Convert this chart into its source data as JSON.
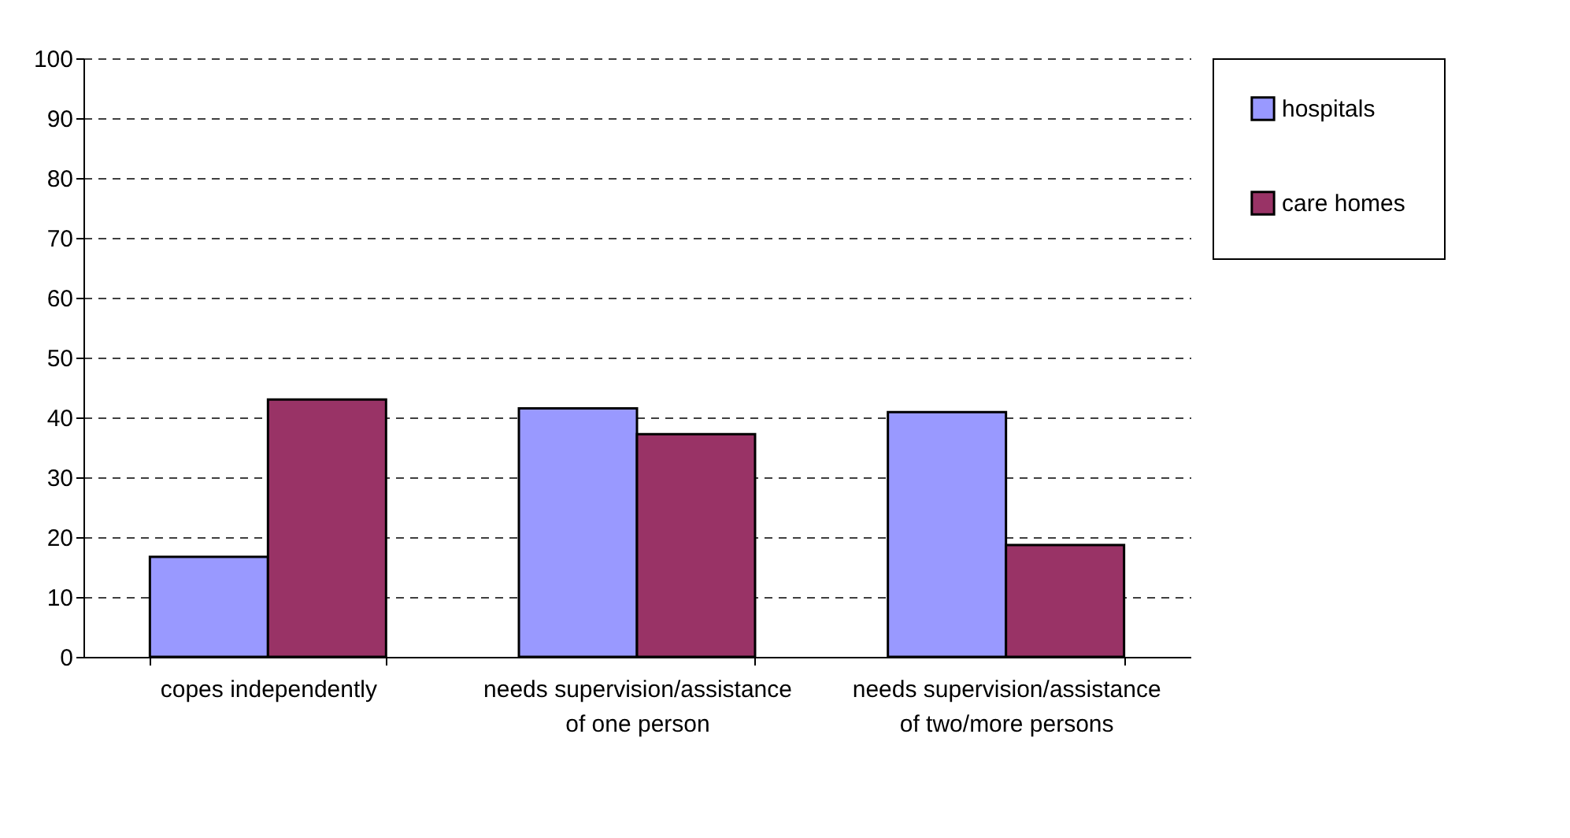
{
  "chart_data": {
    "type": "bar",
    "categories": [
      "copes independently",
      "needs supervision/assistance of one person",
      "needs supervision/assistance of two/more persons"
    ],
    "series": [
      {
        "name": "hospitals",
        "color": "#9999ff",
        "values": [
          16.7,
          41.5,
          40.9
        ]
      },
      {
        "name": "care homes",
        "color": "#993366",
        "values": [
          43.0,
          37.2,
          18.7
        ]
      }
    ],
    "ylim": [
      0,
      100
    ],
    "yticks": [
      0,
      10,
      20,
      30,
      40,
      50,
      60,
      70,
      80,
      90,
      100
    ],
    "grid": "y",
    "legend": "right"
  }
}
